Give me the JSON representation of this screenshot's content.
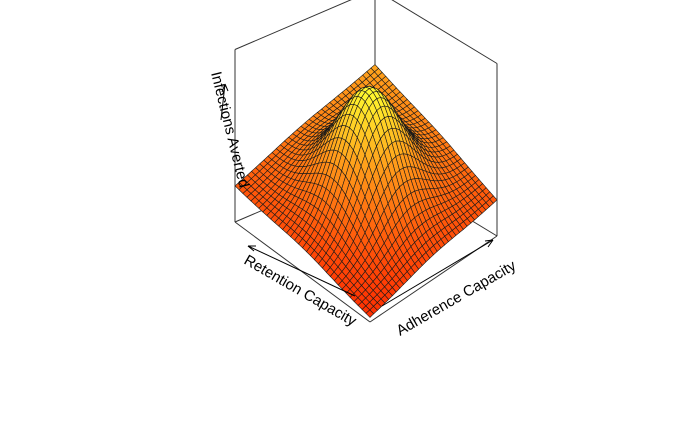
{
  "chart_data": {
    "type": "surface",
    "view": "perspective",
    "zlabel": "Infections Averted",
    "xlabel": "Retention Capacity",
    "ylabel": "Adherence Capacity",
    "grid_resolution": 34,
    "surface": {
      "shape": "gaussian-bump",
      "x_range": [
        0,
        1
      ],
      "y_range": [
        0,
        1
      ],
      "center": [
        0.5,
        0.5
      ],
      "z_range": [
        0,
        1
      ],
      "peak_z": 1.0,
      "corner_z_front": 0.0,
      "corner_z_back": 0.62,
      "corner_z_sides": 0.42
    },
    "colors": {
      "low": "#ff2a00",
      "mid": "#ff9a1a",
      "high": "#ffff30",
      "mesh": "#1a1a1a",
      "box": "#333333"
    },
    "box": true,
    "ticks": false
  }
}
